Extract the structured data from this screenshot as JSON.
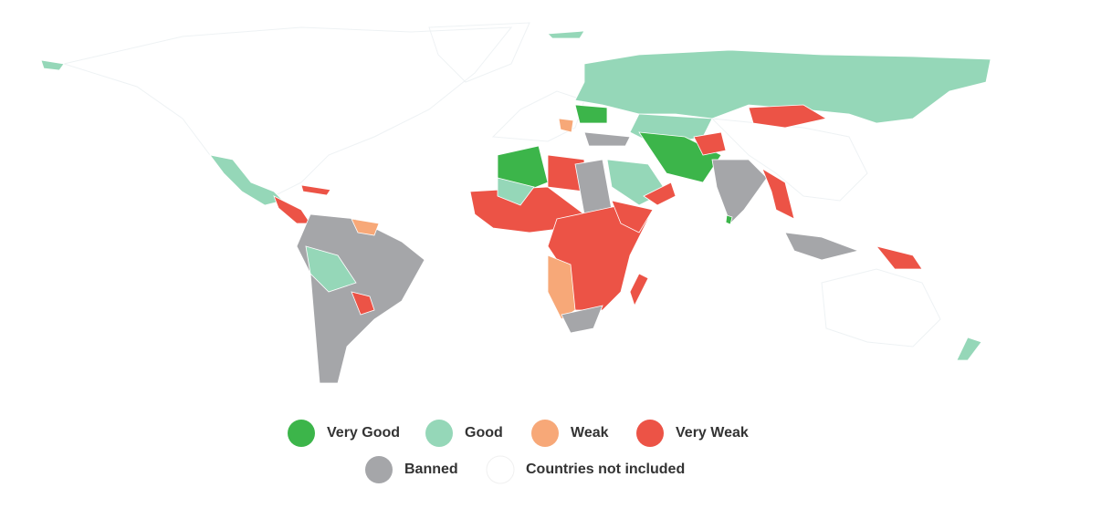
{
  "legend": [
    {
      "label": "Very Good",
      "color": "#3cb54a"
    },
    {
      "label": "Good",
      "color": "#95d7b8"
    },
    {
      "label": "Weak",
      "color": "#f7a878"
    },
    {
      "label": "Very Weak",
      "color": "#ec5346"
    },
    {
      "label": "Banned",
      "color": "#a5a6a9"
    },
    {
      "label": "Countries not included",
      "color": "#ffffff"
    }
  ]
}
